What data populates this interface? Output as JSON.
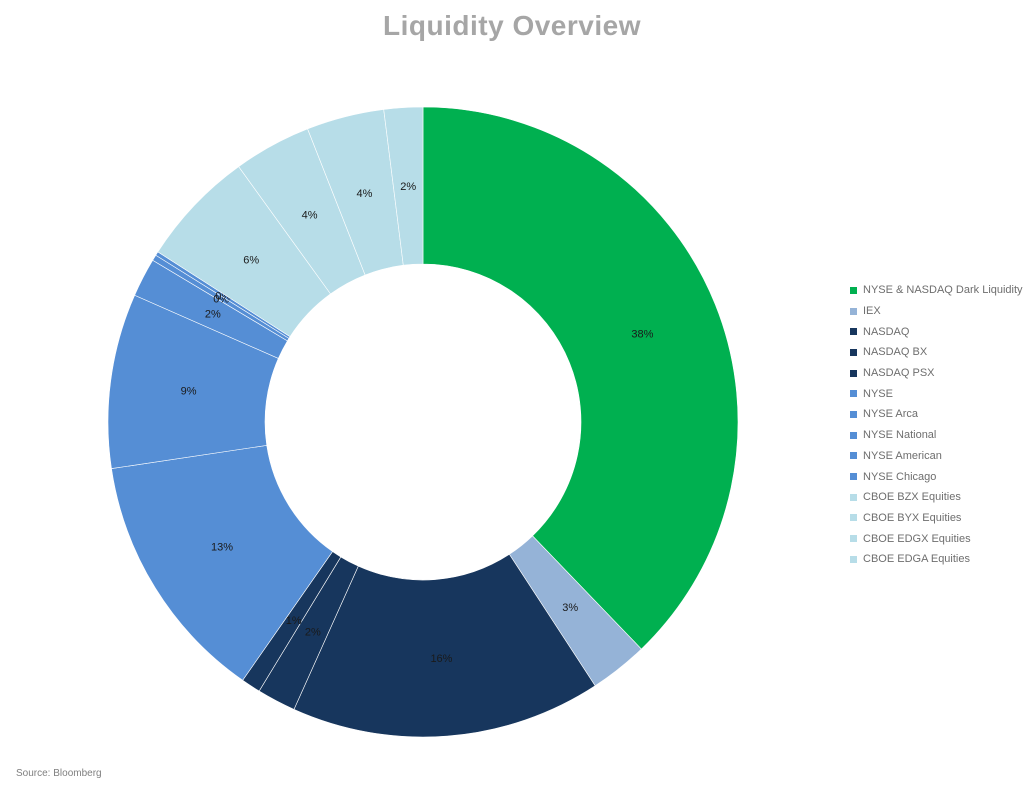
{
  "chart_data": {
    "type": "pie",
    "variant": "donut",
    "title": "Liquidity Overview",
    "legend_position": "right",
    "source": "Source: Bloomberg",
    "slices": [
      {
        "name": "NYSE & NASDAQ Dark Liquidity",
        "value": 38,
        "label": "38%",
        "color": "#00b050"
      },
      {
        "name": "IEX",
        "value": 3,
        "label": "3%",
        "color": "#95b3d7"
      },
      {
        "name": "NASDAQ",
        "value": 16,
        "label": "16%",
        "color": "#17365d"
      },
      {
        "name": "NASDAQ BX",
        "value": 2,
        "label": "2%",
        "color": "#17365d"
      },
      {
        "name": "NASDAQ PSX",
        "value": 1,
        "label": "1%",
        "color": "#17365d"
      },
      {
        "name": "NYSE",
        "value": 13,
        "label": "13%",
        "color": "#558ed5"
      },
      {
        "name": "NYSE Arca",
        "value": 9,
        "label": "9%",
        "color": "#558ed5"
      },
      {
        "name": "NYSE National",
        "value": 2,
        "label": "2%",
        "color": "#558ed5"
      },
      {
        "name": "NYSE American",
        "value": 0.3,
        "label": "0%",
        "color": "#558ed5"
      },
      {
        "name": "NYSE Chicago",
        "value": 0.2,
        "label": "0%",
        "color": "#558ed5"
      },
      {
        "name": "CBOE BZX Equities",
        "value": 6,
        "label": "6%",
        "color": "#b7dde8"
      },
      {
        "name": "CBOE BYX Equities",
        "value": 4,
        "label": "4%",
        "color": "#b7dde8"
      },
      {
        "name": "CBOE EDGX Equities",
        "value": 4,
        "label": "4%",
        "color": "#b7dde8"
      },
      {
        "name": "CBOE EDGA Equities",
        "value": 2,
        "label": "2%",
        "color": "#b7dde8"
      }
    ]
  }
}
